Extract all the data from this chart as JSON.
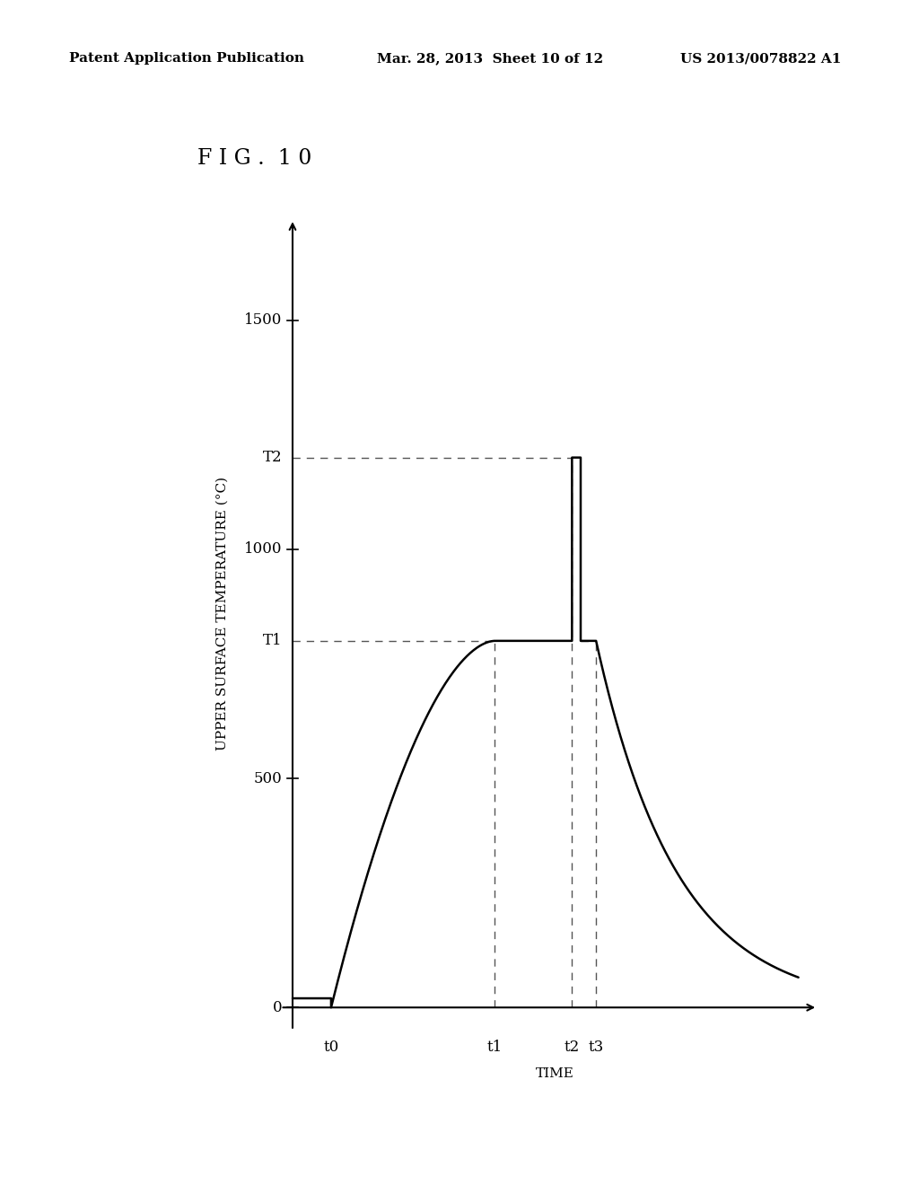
{
  "fig_label": "F I G .  1 0",
  "header_left": "Patent Application Publication",
  "header_center": "Mar. 28, 2013  Sheet 10 of 12",
  "header_right": "US 2013/0078822 A1",
  "ylabel": "UPPER SURFACE TEMPERATURE (°C)",
  "xlabel": "TIME",
  "yticks": [
    0,
    500,
    1000,
    1500
  ],
  "xtick_labels": [
    "t0",
    "t1",
    "t2",
    "t3"
  ],
  "T1_label": "T1",
  "T2_label": "T2",
  "T1_value": 800,
  "T2_value": 1200,
  "ylim_max": 1720,
  "background_color": "#ffffff",
  "line_color": "#000000",
  "dashed_color": "#555555",
  "header_fontsize": 11,
  "fig_label_fontsize": 17,
  "axis_label_fontsize": 11,
  "tick_fontsize": 12
}
